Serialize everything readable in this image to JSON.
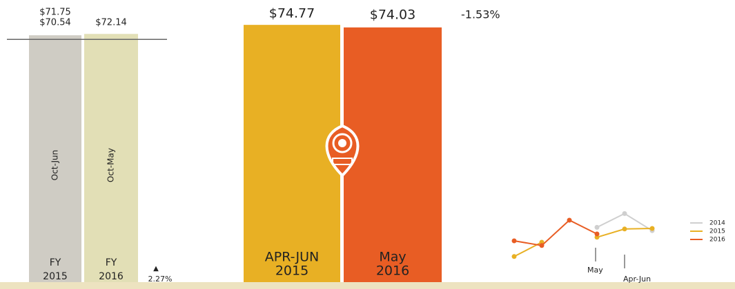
{
  "chart_data": [
    {
      "type": "bar",
      "categories": [
        [
          "FY",
          "2015"
        ],
        [
          "FY",
          "2016"
        ]
      ],
      "periods": [
        "Oct-Jun",
        "Oct-May"
      ],
      "values": [
        71.75,
        72.14
      ],
      "value_labels": [
        "$71.75",
        "$72.14"
      ],
      "colors": [
        "#cfccc4",
        "#e2dfb6"
      ],
      "reference": {
        "value": 70.54,
        "label": "$70.54"
      },
      "change": {
        "symbol": "▲",
        "label": "2.27%"
      },
      "ylim": [
        0,
        76
      ]
    },
    {
      "type": "bar",
      "categories": [
        [
          "APR-JUN",
          "2015"
        ],
        [
          "May",
          "2016"
        ]
      ],
      "values": [
        74.77,
        74.03
      ],
      "value_labels": [
        "$74.77",
        "$74.03"
      ],
      "colors": [
        "#e8b024",
        "#e85d24"
      ],
      "change": {
        "label": "-1.53%"
      },
      "ylim": [
        0,
        76
      ]
    },
    {
      "type": "line",
      "categories": [
        null,
        null,
        null,
        null,
        null,
        null
      ],
      "series": [
        {
          "name": "2014",
          "color": "#cfcfcf",
          "values": [
            null,
            31,
            null,
            62,
            87,
            56
          ]
        },
        {
          "name": "2015",
          "color": "#e8b024",
          "values": [
            9,
            35,
            null,
            44,
            59,
            60
          ]
        },
        {
          "name": "2016",
          "color": "#e85d24",
          "values": [
            37.5,
            29,
            75,
            50,
            null,
            null
          ]
        }
      ],
      "annotations": [
        {
          "label": "May",
          "index": 3
        },
        {
          "label": "Apr-Jun",
          "index": 4
        }
      ],
      "ylim": [
        0,
        100
      ]
    }
  ]
}
